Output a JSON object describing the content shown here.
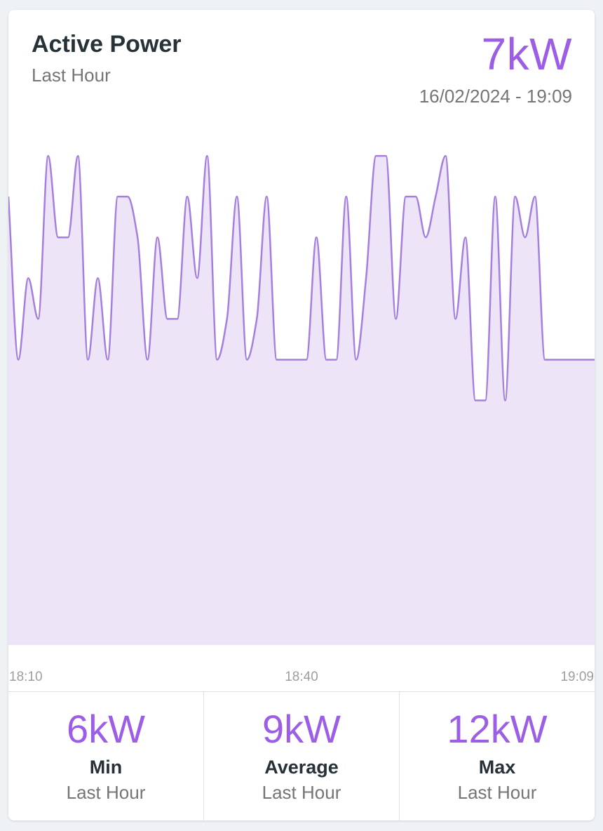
{
  "card": {
    "title": "Active Power",
    "subtitle": "Last Hour",
    "current_value": "7kW",
    "timestamp": "16/02/2024 - 19:09"
  },
  "chart_data": {
    "type": "area",
    "x_ticks": [
      "18:10",
      "18:40",
      "19:09"
    ],
    "x": [
      "18:10",
      "18:11",
      "18:12",
      "18:13",
      "18:14",
      "18:15",
      "18:16",
      "18:17",
      "18:18",
      "18:19",
      "18:20",
      "18:21",
      "18:22",
      "18:23",
      "18:24",
      "18:25",
      "18:26",
      "18:27",
      "18:28",
      "18:29",
      "18:30",
      "18:31",
      "18:32",
      "18:33",
      "18:34",
      "18:35",
      "18:36",
      "18:37",
      "18:38",
      "18:39",
      "18:40",
      "18:41",
      "18:42",
      "18:43",
      "18:44",
      "18:45",
      "18:46",
      "18:47",
      "18:48",
      "18:49",
      "18:50",
      "18:51",
      "18:52",
      "18:53",
      "18:54",
      "18:55",
      "18:56",
      "18:57",
      "18:58",
      "18:59",
      "19:00",
      "19:01",
      "19:02",
      "19:03",
      "19:04",
      "19:05",
      "19:06",
      "19:07",
      "19:08",
      "19:09"
    ],
    "values": [
      11,
      7,
      9,
      8,
      12,
      10,
      10,
      12,
      7,
      9,
      7,
      11,
      11,
      10,
      7,
      10,
      8,
      8,
      11,
      9,
      12,
      7,
      8,
      11,
      7,
      8,
      11,
      7,
      7,
      7,
      7,
      10,
      7,
      7,
      11,
      7,
      9,
      12,
      12,
      8,
      11,
      11,
      10,
      11,
      12,
      8,
      10,
      6,
      6,
      11,
      6,
      11,
      10,
      11,
      7,
      7,
      7,
      7,
      7,
      7
    ],
    "ylim": [
      0,
      13
    ],
    "colors": {
      "line": "#a57fe0",
      "fill": "#ede4f8"
    }
  },
  "stats": [
    {
      "value": "6kW",
      "label": "Min",
      "sub": "Last Hour"
    },
    {
      "value": "9kW",
      "label": "Average",
      "sub": "Last Hour"
    },
    {
      "value": "12kW",
      "label": "Max",
      "sub": "Last Hour"
    }
  ],
  "colors": {
    "accent": "#9c5ee6"
  }
}
